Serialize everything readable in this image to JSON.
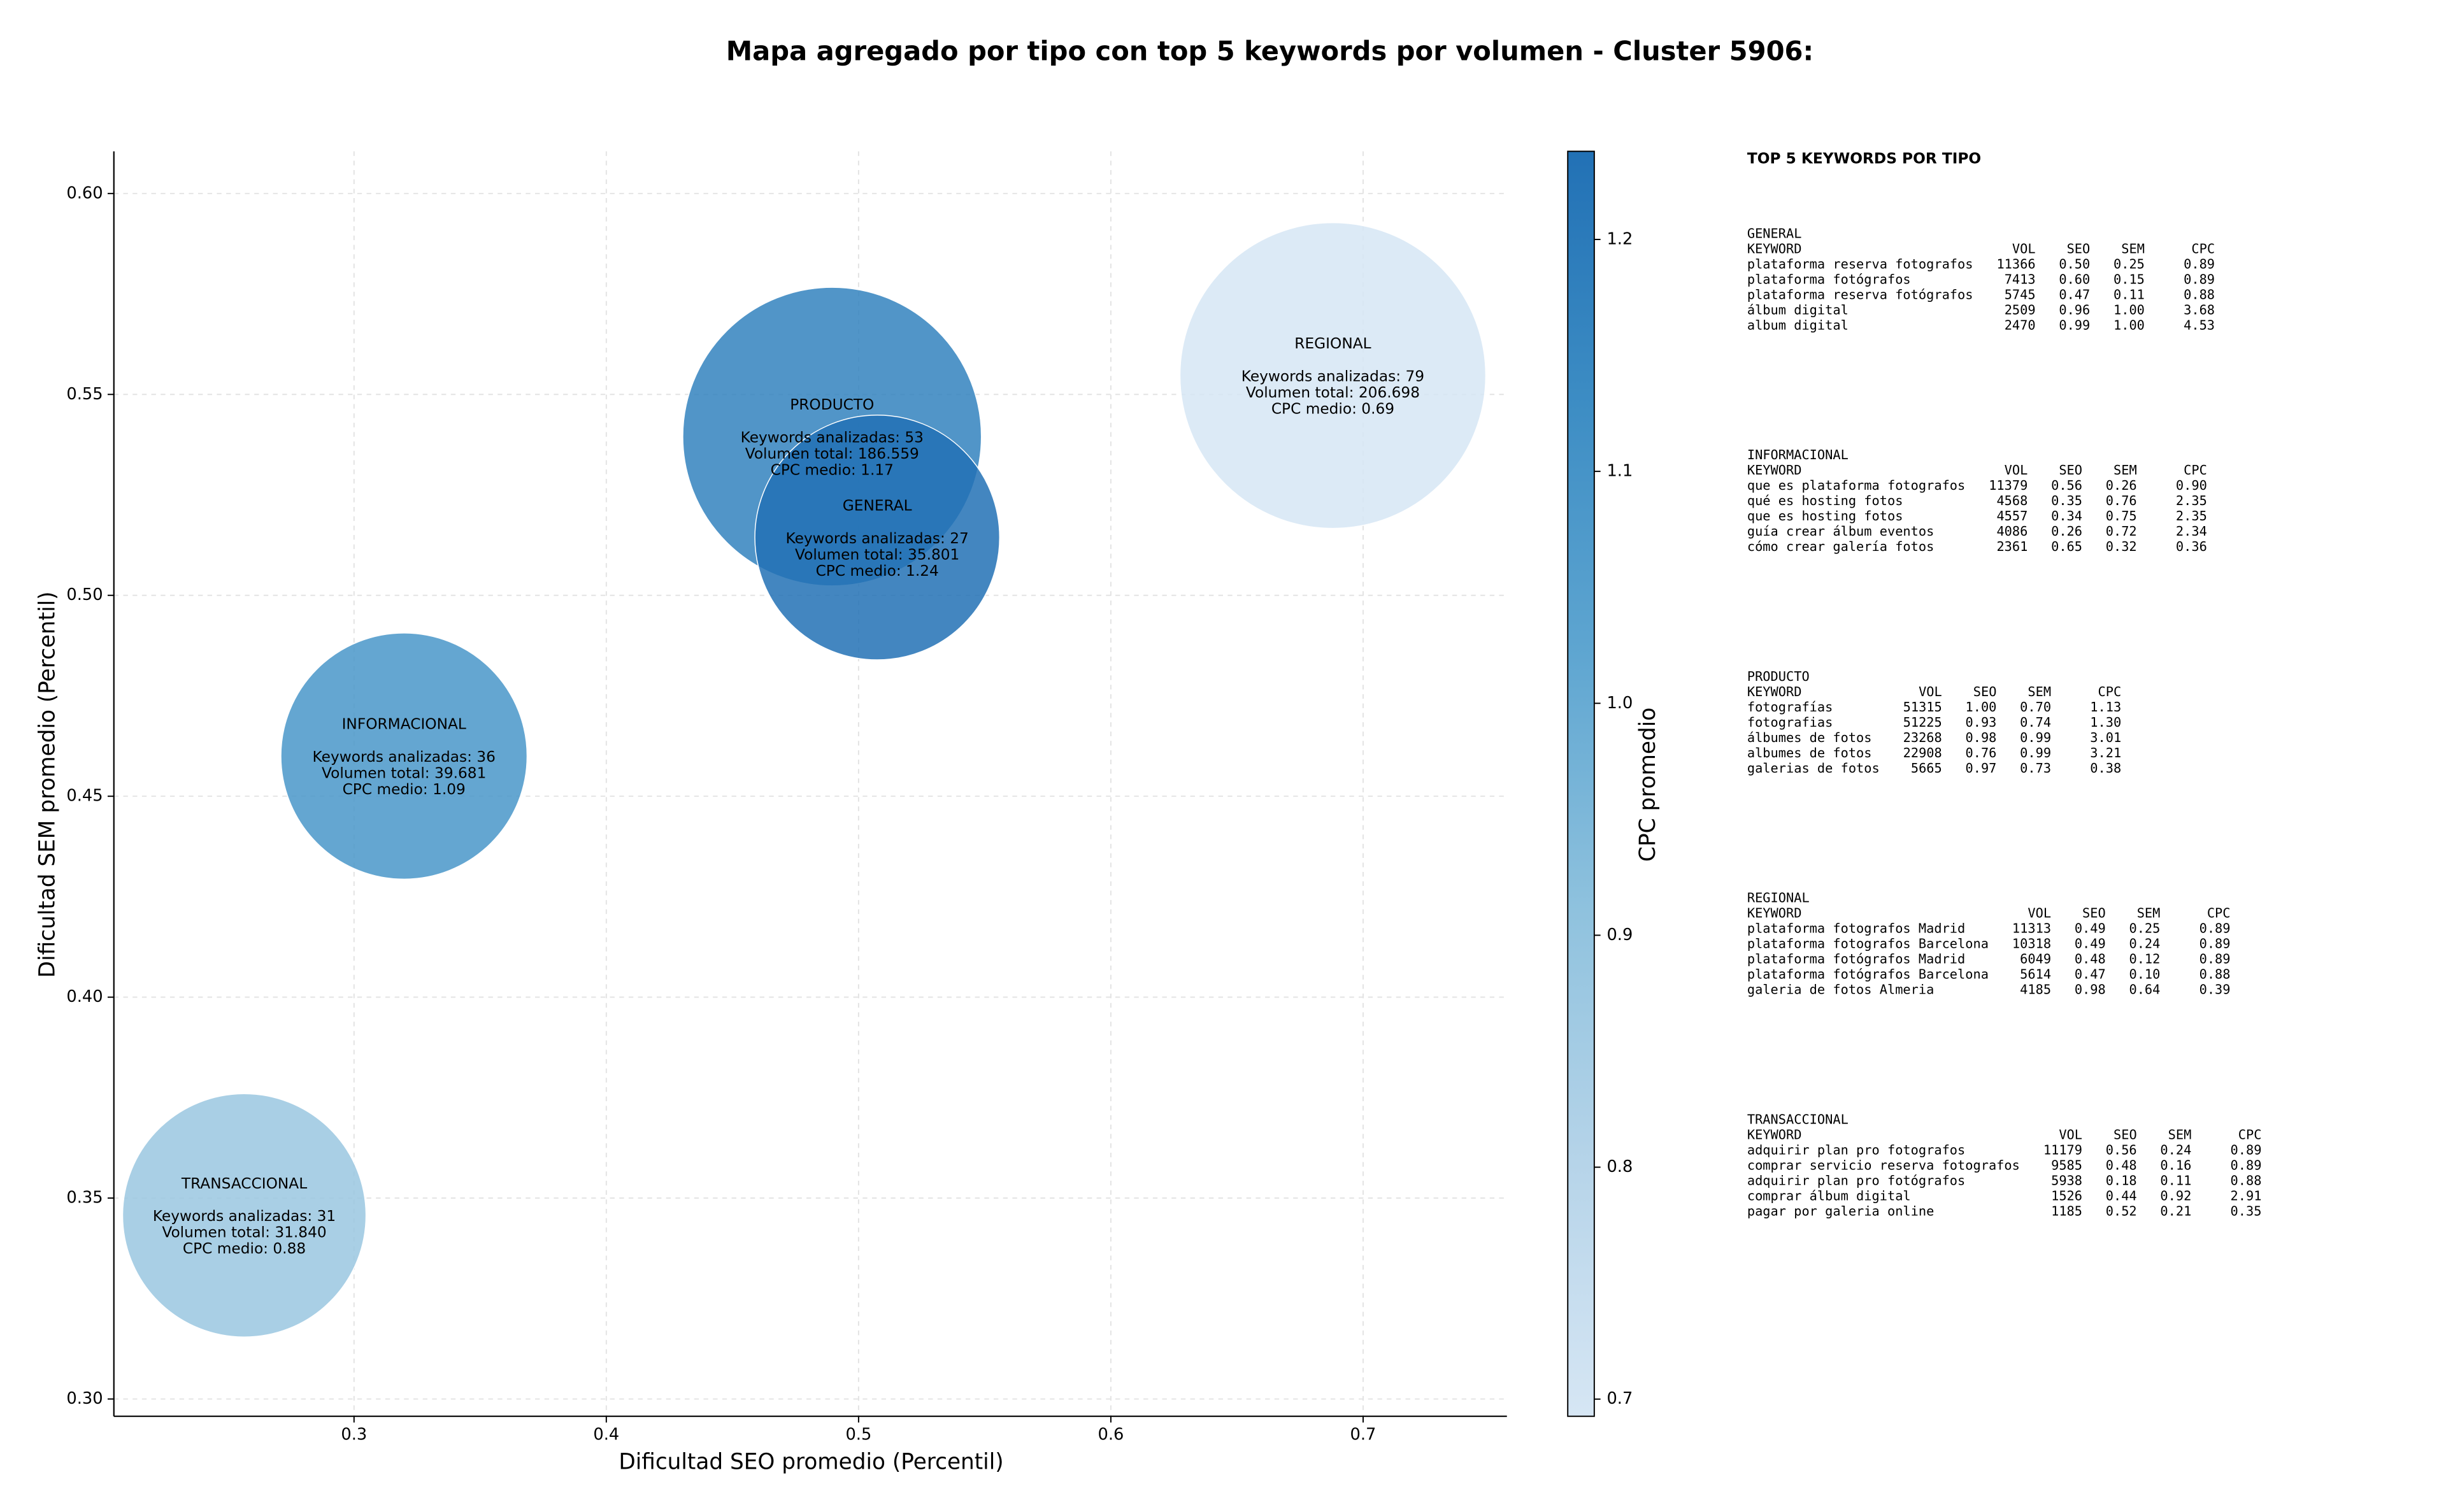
{
  "chart_data": {
    "type": "bubble",
    "title": "Mapa agregado por tipo con top 5 keywords por volumen - Cluster 5906:",
    "x_label": "Dificultad SEO promedio (Percentil)",
    "y_label": "Dificultad SEM promedio (Percentil)",
    "colorbar_label": "CPC promedio",
    "xlim": [
      0.2048,
      0.757
    ],
    "ylim": [
      0.2957,
      0.6105
    ],
    "xticks": [
      0.3,
      0.4,
      0.5,
      0.6,
      0.7
    ],
    "yticks": [
      {
        "value": 0.3,
        "label": "0.30"
      },
      0.35,
      {
        "value": 0.4,
        "label": "0.40"
      },
      0.45,
      {
        "value": 0.5,
        "label": "0.50"
      },
      0.55,
      {
        "value": 0.6,
        "label": "0.60"
      }
    ],
    "clim": [
      0.6926,
      1.238
    ],
    "cticks": [
      0.7,
      0.8,
      0.9,
      {
        "value": 1.0,
        "label": "1.0"
      },
      1.1,
      1.2
    ],
    "colormap": [
      "#d6e6f4",
      "#b6d4e9",
      "#8fc2de",
      "#5fa6d1",
      "#3d8dc4",
      "#2271b5"
    ],
    "grid": true,
    "points": [
      {
        "name": "TRANSACCIONAL",
        "x": 0.2565,
        "y": 0.3457,
        "volume": 31840,
        "keywords": 31,
        "cpc": 0.88,
        "labels": [
          "Keywords analizadas: 31",
          "Volumen total: 31.840",
          "CPC medio: 0.88"
        ]
      },
      {
        "name": "INFORMACIONAL",
        "x": 0.3198,
        "y": 0.46,
        "volume": 39681,
        "keywords": 36,
        "cpc": 1.09,
        "labels": [
          "Keywords analizadas: 36",
          "Volumen total: 39.681",
          "CPC medio: 1.09"
        ]
      },
      {
        "name": "PRODUCTO",
        "x": 0.4895,
        "y": 0.5395,
        "volume": 186559,
        "keywords": 53,
        "cpc": 1.17,
        "labels": [
          "Keywords analizadas: 53",
          "Volumen total: 186.559",
          "CPC medio: 1.17"
        ]
      },
      {
        "name": "GENERAL",
        "x": 0.5074,
        "y": 0.5144,
        "volume": 35801,
        "keywords": 27,
        "cpc": 1.24,
        "labels": [
          "Keywords analizadas: 27",
          "Volumen total: 35.801",
          "CPC medio: 1.24"
        ]
      },
      {
        "name": "REGIONAL",
        "x": 0.688,
        "y": 0.5547,
        "volume": 206698,
        "keywords": 79,
        "cpc": 0.69,
        "labels": [
          "Keywords analizadas: 79",
          "Volumen total: 206.698",
          "CPC medio: 0.69"
        ]
      }
    ]
  },
  "keyword_tables": {
    "title": "TOP 5 KEYWORDS POR TIPO",
    "sections": [
      {
        "name": "GENERAL",
        "header": [
          "KEYWORD",
          "VOL",
          "SEO",
          "SEM",
          "CPC"
        ],
        "rows": [
          [
            "plataforma reserva fotografos",
            "11366",
            "0.50",
            "0.25",
            "0.89"
          ],
          [
            "plataforma fotógrafos",
            "7413",
            "0.60",
            "0.15",
            "0.89"
          ],
          [
            "plataforma reserva fotógrafos",
            "5745",
            "0.47",
            "0.11",
            "0.88"
          ],
          [
            "álbum digital",
            "2509",
            "0.96",
            "1.00",
            "3.68"
          ],
          [
            "album digital",
            "2470",
            "0.99",
            "1.00",
            "4.53"
          ]
        ]
      },
      {
        "name": "INFORMACIONAL",
        "header": [
          "KEYWORD",
          "VOL",
          "SEO",
          "SEM",
          "CPC"
        ],
        "rows": [
          [
            "que es plataforma fotografos",
            "11379",
            "0.56",
            "0.26",
            "0.90"
          ],
          [
            "qué es hosting fotos",
            "4568",
            "0.35",
            "0.76",
            "2.35"
          ],
          [
            "que es hosting fotos",
            "4557",
            "0.34",
            "0.75",
            "2.35"
          ],
          [
            "guía crear álbum eventos",
            "4086",
            "0.26",
            "0.72",
            "2.34"
          ],
          [
            "cómo crear galería fotos",
            "2361",
            "0.65",
            "0.32",
            "0.36"
          ]
        ]
      },
      {
        "name": "PRODUCTO",
        "header": [
          "KEYWORD",
          "VOL",
          "SEO",
          "SEM",
          "CPC"
        ],
        "rows": [
          [
            "fotografías",
            "51315",
            "1.00",
            "0.70",
            "1.13"
          ],
          [
            "fotografias",
            "51225",
            "0.93",
            "0.74",
            "1.30"
          ],
          [
            "álbumes de fotos",
            "23268",
            "0.98",
            "0.99",
            "3.01"
          ],
          [
            "albumes de fotos",
            "22908",
            "0.76",
            "0.99",
            "3.21"
          ],
          [
            "galerias de fotos",
            "5665",
            "0.97",
            "0.73",
            "0.38"
          ]
        ]
      },
      {
        "name": "REGIONAL",
        "header": [
          "KEYWORD",
          "VOL",
          "SEO",
          "SEM",
          "CPC"
        ],
        "rows": [
          [
            "plataforma fotografos Madrid",
            "11313",
            "0.49",
            "0.25",
            "0.89"
          ],
          [
            "plataforma fotografos Barcelona",
            "10318",
            "0.49",
            "0.24",
            "0.89"
          ],
          [
            "plataforma fotógrafos Madrid",
            "6049",
            "0.48",
            "0.12",
            "0.89"
          ],
          [
            "plataforma fotógrafos Barcelona",
            "5614",
            "0.47",
            "0.10",
            "0.88"
          ],
          [
            "galeria de fotos Almeria",
            "4185",
            "0.98",
            "0.64",
            "0.39"
          ]
        ]
      },
      {
        "name": "TRANSACCIONAL",
        "header": [
          "KEYWORD",
          "VOL",
          "SEO",
          "SEM",
          "CPC"
        ],
        "rows": [
          [
            "adquirir plan pro fotografos",
            "11179",
            "0.56",
            "0.24",
            "0.89"
          ],
          [
            "comprar servicio reserva fotografos",
            "9585",
            "0.48",
            "0.16",
            "0.89"
          ],
          [
            "adquirir plan pro fotógrafos",
            "5938",
            "0.18",
            "0.11",
            "0.88"
          ],
          [
            "comprar álbum digital",
            "1526",
            "0.44",
            "0.92",
            "2.91"
          ],
          [
            "pagar por galeria online",
            "1185",
            "0.52",
            "0.21",
            "0.35"
          ]
        ]
      }
    ]
  }
}
